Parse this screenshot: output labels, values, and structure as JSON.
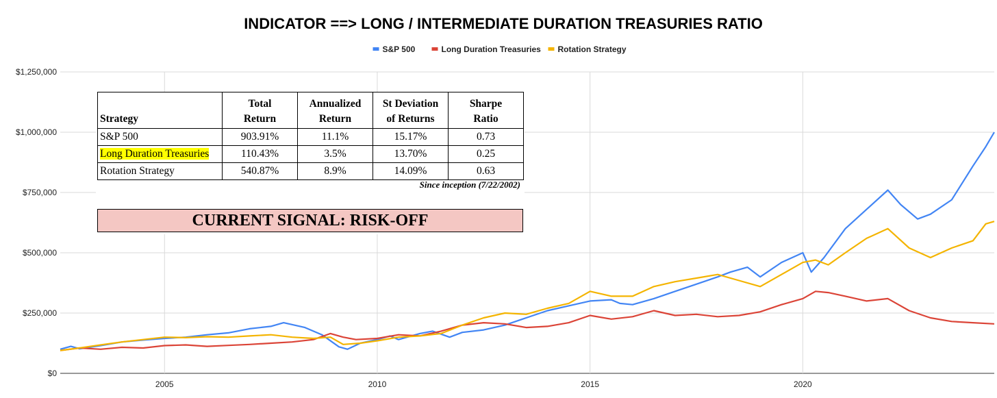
{
  "chart_data": {
    "type": "line",
    "title": "INDICATOR ==> LONG / INTERMEDIATE DURATION TREASURIES RATIO",
    "legend_position": "top-center",
    "x_range": [
      2002.55,
      2024.5
    ],
    "x_ticks": [
      2005,
      2010,
      2015,
      2020
    ],
    "x_tick_labels": [
      "2005",
      "2010",
      "2015",
      "2020"
    ],
    "y_range": [
      0,
      1250000
    ],
    "y_ticks": [
      0,
      250000,
      500000,
      750000,
      1000000,
      1250000
    ],
    "y_tick_labels": [
      "$0",
      "$250,000",
      "$500,000",
      "$750,000",
      "$1,000,000",
      "$1,250,000"
    ],
    "grid": true,
    "series": [
      {
        "name": "S&P 500",
        "color": "#4285f4",
        "points": [
          [
            2002.55,
            100000
          ],
          [
            2002.8,
            112000
          ],
          [
            2003.0,
            102000
          ],
          [
            2003.5,
            115000
          ],
          [
            2004.0,
            130000
          ],
          [
            2004.5,
            138000
          ],
          [
            2005.0,
            145000
          ],
          [
            2005.5,
            150000
          ],
          [
            2006.0,
            160000
          ],
          [
            2006.5,
            168000
          ],
          [
            2007.0,
            185000
          ],
          [
            2007.5,
            195000
          ],
          [
            2007.8,
            210000
          ],
          [
            2008.3,
            190000
          ],
          [
            2008.7,
            160000
          ],
          [
            2009.1,
            110000
          ],
          [
            2009.3,
            100000
          ],
          [
            2009.6,
            125000
          ],
          [
            2010.0,
            140000
          ],
          [
            2010.3,
            155000
          ],
          [
            2010.5,
            140000
          ],
          [
            2011.0,
            165000
          ],
          [
            2011.3,
            175000
          ],
          [
            2011.7,
            150000
          ],
          [
            2012.0,
            170000
          ],
          [
            2012.5,
            180000
          ],
          [
            2013.0,
            200000
          ],
          [
            2013.5,
            230000
          ],
          [
            2014.0,
            260000
          ],
          [
            2014.5,
            280000
          ],
          [
            2015.0,
            300000
          ],
          [
            2015.5,
            305000
          ],
          [
            2015.7,
            290000
          ],
          [
            2016.0,
            285000
          ],
          [
            2016.5,
            310000
          ],
          [
            2017.0,
            340000
          ],
          [
            2017.5,
            370000
          ],
          [
            2018.0,
            400000
          ],
          [
            2018.3,
            420000
          ],
          [
            2018.7,
            440000
          ],
          [
            2019.0,
            400000
          ],
          [
            2019.5,
            460000
          ],
          [
            2020.0,
            500000
          ],
          [
            2020.2,
            420000
          ],
          [
            2020.5,
            480000
          ],
          [
            2021.0,
            600000
          ],
          [
            2021.5,
            680000
          ],
          [
            2022.0,
            760000
          ],
          [
            2022.3,
            700000
          ],
          [
            2022.7,
            640000
          ],
          [
            2023.0,
            660000
          ],
          [
            2023.5,
            720000
          ],
          [
            2024.0,
            860000
          ],
          [
            2024.3,
            940000
          ],
          [
            2024.5,
            1000000
          ]
        ]
      },
      {
        "name": "Long Duration Treasuries",
        "color": "#db4437",
        "points": [
          [
            2002.55,
            95000
          ],
          [
            2003.0,
            105000
          ],
          [
            2003.5,
            100000
          ],
          [
            2004.0,
            108000
          ],
          [
            2004.5,
            105000
          ],
          [
            2005.0,
            115000
          ],
          [
            2005.5,
            118000
          ],
          [
            2006.0,
            112000
          ],
          [
            2006.5,
            116000
          ],
          [
            2007.0,
            120000
          ],
          [
            2007.5,
            125000
          ],
          [
            2008.0,
            130000
          ],
          [
            2008.5,
            140000
          ],
          [
            2008.9,
            165000
          ],
          [
            2009.2,
            150000
          ],
          [
            2009.5,
            140000
          ],
          [
            2010.0,
            145000
          ],
          [
            2010.5,
            160000
          ],
          [
            2011.0,
            155000
          ],
          [
            2011.5,
            175000
          ],
          [
            2012.0,
            200000
          ],
          [
            2012.5,
            210000
          ],
          [
            2013.0,
            205000
          ],
          [
            2013.5,
            190000
          ],
          [
            2014.0,
            195000
          ],
          [
            2014.5,
            210000
          ],
          [
            2015.0,
            240000
          ],
          [
            2015.5,
            225000
          ],
          [
            2016.0,
            235000
          ],
          [
            2016.5,
            260000
          ],
          [
            2017.0,
            240000
          ],
          [
            2017.5,
            245000
          ],
          [
            2018.0,
            235000
          ],
          [
            2018.5,
            240000
          ],
          [
            2019.0,
            255000
          ],
          [
            2019.5,
            285000
          ],
          [
            2020.0,
            310000
          ],
          [
            2020.3,
            340000
          ],
          [
            2020.6,
            335000
          ],
          [
            2021.0,
            320000
          ],
          [
            2021.5,
            300000
          ],
          [
            2022.0,
            310000
          ],
          [
            2022.5,
            260000
          ],
          [
            2023.0,
            230000
          ],
          [
            2023.5,
            215000
          ],
          [
            2024.0,
            210000
          ],
          [
            2024.5,
            205000
          ]
        ]
      },
      {
        "name": "Rotation Strategy",
        "color": "#f4b400",
        "points": [
          [
            2002.55,
            95000
          ],
          [
            2003.0,
            105000
          ],
          [
            2003.5,
            118000
          ],
          [
            2004.0,
            130000
          ],
          [
            2004.5,
            140000
          ],
          [
            2005.0,
            150000
          ],
          [
            2005.5,
            148000
          ],
          [
            2006.0,
            152000
          ],
          [
            2006.5,
            150000
          ],
          [
            2007.0,
            155000
          ],
          [
            2007.5,
            160000
          ],
          [
            2008.0,
            150000
          ],
          [
            2008.5,
            145000
          ],
          [
            2008.9,
            150000
          ],
          [
            2009.2,
            120000
          ],
          [
            2009.6,
            125000
          ],
          [
            2010.0,
            135000
          ],
          [
            2010.5,
            150000
          ],
          [
            2011.0,
            155000
          ],
          [
            2011.5,
            165000
          ],
          [
            2012.0,
            200000
          ],
          [
            2012.5,
            230000
          ],
          [
            2013.0,
            250000
          ],
          [
            2013.5,
            245000
          ],
          [
            2014.0,
            270000
          ],
          [
            2014.5,
            290000
          ],
          [
            2015.0,
            340000
          ],
          [
            2015.5,
            320000
          ],
          [
            2016.0,
            320000
          ],
          [
            2016.5,
            360000
          ],
          [
            2017.0,
            380000
          ],
          [
            2017.5,
            395000
          ],
          [
            2018.0,
            410000
          ],
          [
            2018.5,
            385000
          ],
          [
            2019.0,
            360000
          ],
          [
            2019.5,
            410000
          ],
          [
            2020.0,
            460000
          ],
          [
            2020.3,
            470000
          ],
          [
            2020.6,
            450000
          ],
          [
            2021.0,
            500000
          ],
          [
            2021.5,
            560000
          ],
          [
            2022.0,
            600000
          ],
          [
            2022.5,
            520000
          ],
          [
            2023.0,
            480000
          ],
          [
            2023.5,
            520000
          ],
          [
            2024.0,
            550000
          ],
          [
            2024.3,
            620000
          ],
          [
            2024.5,
            630000
          ]
        ]
      }
    ]
  },
  "stats_table": {
    "headers": [
      "Strategy",
      "Total Return",
      "Annualized Return",
      "St Deviation of Returns",
      "Sharpe Ratio"
    ],
    "header_lines": {
      "strategy": "Strategy",
      "total_1": "Total",
      "total_2": "Return",
      "ann_1": "Annualized",
      "ann_2": "Return",
      "sd_1": "St Deviation",
      "sd_2": "of Returns",
      "sharpe_1": "Sharpe",
      "sharpe_2": "Ratio"
    },
    "rows": [
      {
        "strategy": "S&P 500",
        "total_return": "903.91%",
        "annualized_return": "11.1%",
        "st_deviation": "15.17%",
        "sharpe_ratio": "0.73"
      },
      {
        "strategy": "Long Duration Treasuries",
        "total_return": "110.43%",
        "annualized_return": "3.5%",
        "st_deviation": "13.70%",
        "sharpe_ratio": "0.25"
      },
      {
        "strategy": "Rotation Strategy",
        "total_return": "540.87%",
        "annualized_return": "8.9%",
        "st_deviation": "14.09%",
        "sharpe_ratio": "0.63"
      }
    ],
    "highlight_color": "#ffff00",
    "note": "Since inception (7/22/2002)"
  },
  "signal": {
    "label": "CURRENT SIGNAL: RISK-OFF",
    "color": "#f4c7c3"
  }
}
